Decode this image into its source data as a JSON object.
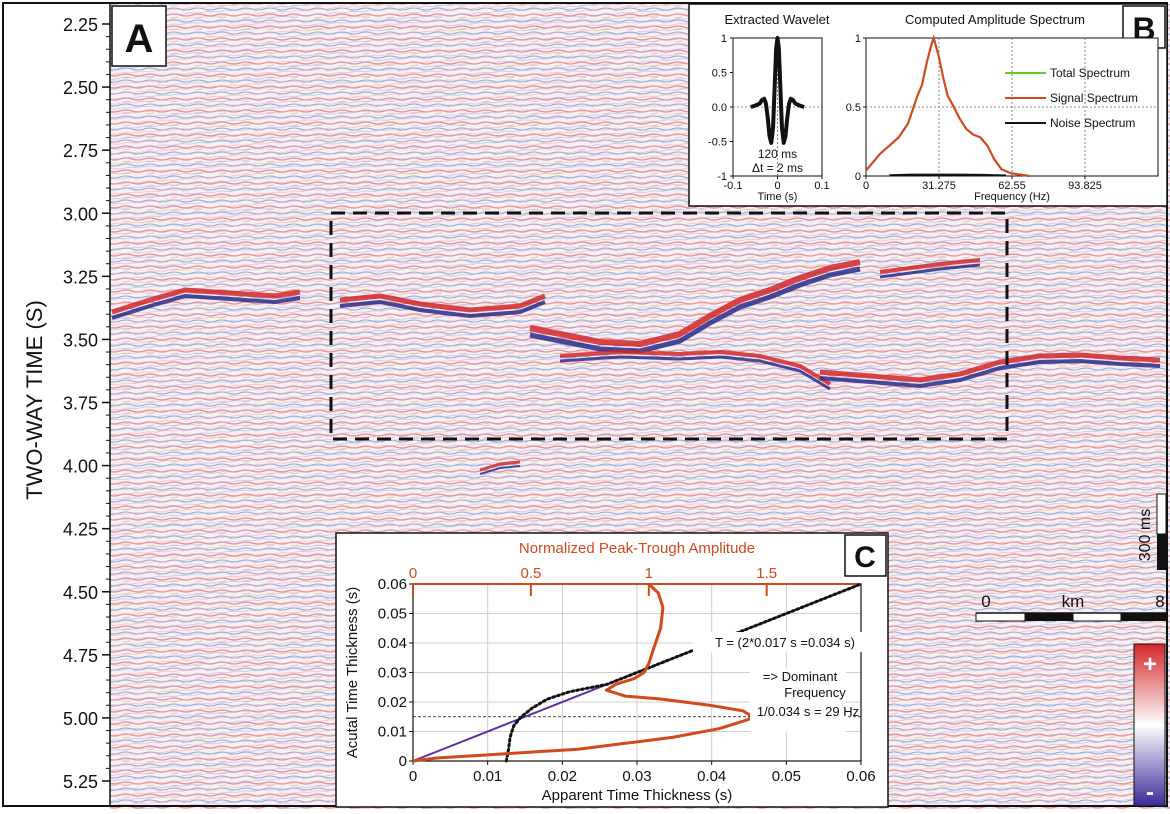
{
  "main_panel": {
    "label": "A",
    "y_axis_label": "TWO-WAY TIME (S)",
    "y_ticks": [
      "2.25",
      "2.50",
      "2.75",
      "3.00",
      "3.25",
      "3.50",
      "3.75",
      "4.00",
      "4.25",
      "4.50",
      "4.75",
      "5.00",
      "5.25"
    ],
    "y_range": [
      2.21,
      5.33
    ],
    "vertical_scale_label": "300 ms",
    "horizontal_scale": {
      "start": "0",
      "unit": "km",
      "end": "8"
    },
    "colorbar": {
      "plus": "+",
      "minus": "-",
      "pos_color": "#d2272a",
      "neg_color": "#3a2a9a"
    }
  },
  "chart_data": [
    {
      "type": "line",
      "title": "Extracted Wavelet",
      "xlabel": "Time (s)",
      "ylabel": "",
      "xlim": [
        -0.1,
        0.1
      ],
      "ylim": [
        -1,
        1
      ],
      "x_ticks": [
        "-0.1",
        "0",
        "0.1"
      ],
      "y_ticks": [
        "1",
        "0.5",
        "0.0",
        "-0.5",
        "-1"
      ],
      "annotations": [
        "120 ms",
        "Δt = 2 ms"
      ],
      "series": [
        {
          "x": [
            -0.06,
            -0.05,
            -0.04,
            -0.035,
            -0.03,
            -0.026,
            -0.022,
            -0.018,
            -0.014,
            -0.01,
            -0.006,
            -0.003,
            0,
            0.003,
            0.006,
            0.01,
            0.014,
            0.018,
            0.022,
            0.026,
            0.03,
            0.035,
            0.04,
            0.05,
            0.06
          ],
          "y": [
            0,
            0.02,
            0.05,
            0.1,
            0.12,
            0.05,
            -0.15,
            -0.42,
            -0.52,
            -0.3,
            0.35,
            0.85,
            1.0,
            0.85,
            0.35,
            -0.3,
            -0.52,
            -0.42,
            -0.15,
            0.05,
            0.12,
            0.1,
            0.05,
            0.02,
            0
          ]
        }
      ]
    },
    {
      "type": "line",
      "title": "Computed Amplitude Spectrum",
      "xlabel": "Frequency (Hz)",
      "ylabel": "",
      "xlim": [
        0,
        125.1
      ],
      "ylim": [
        0,
        1
      ],
      "x_ticks": [
        "0",
        "31.275",
        "62.55",
        "93.825"
      ],
      "y_ticks": [
        "1",
        "0.5",
        "0"
      ],
      "legend": [
        "Total Spectrum",
        "Signal Spectrum",
        "Noise Spectrum"
      ],
      "legend_colors": [
        "#66cc22",
        "#d2491c",
        "#111111"
      ],
      "series": [
        {
          "name": "Signal Spectrum",
          "x": [
            0,
            3,
            6,
            10,
            14,
            18,
            20,
            22,
            24,
            26,
            28,
            29,
            31,
            33,
            35,
            37,
            40,
            43,
            46,
            49,
            52,
            55,
            58,
            62,
            66,
            70
          ],
          "y": [
            0.04,
            0.1,
            0.16,
            0.22,
            0.28,
            0.38,
            0.48,
            0.58,
            0.66,
            0.82,
            0.95,
            1.0,
            0.88,
            0.72,
            0.58,
            0.52,
            0.42,
            0.34,
            0.3,
            0.28,
            0.22,
            0.12,
            0.05,
            0.02,
            0.01,
            0
          ]
        },
        {
          "name": "Noise Spectrum",
          "x": [
            10,
            20,
            30,
            40,
            50,
            60
          ],
          "y": [
            0.005,
            0.01,
            0.01,
            0.01,
            0.008,
            0.004
          ]
        }
      ]
    },
    {
      "type": "line",
      "label": "C",
      "title": "",
      "xlabel": "Apparent Time Thickness (s)",
      "ylabel": "Acutal Time Thickness (s)",
      "x2label": "Normalized Peak-Trough Amplitude",
      "xlim": [
        0,
        0.06
      ],
      "ylim": [
        0,
        0.06
      ],
      "x2lim": [
        0,
        1.9
      ],
      "x_ticks": [
        "0",
        "0.01",
        "0.02",
        "0.03",
        "0.04",
        "0.05",
        "0.06"
      ],
      "y_ticks": [
        "0",
        "0.01",
        "0.02",
        "0.03",
        "0.04",
        "0.05",
        "0.06"
      ],
      "x2_ticks": [
        "0",
        "0.5",
        "1",
        "1.5"
      ],
      "annotations": [
        "T = (2*0.017 s =0.034 s)",
        "=> Dominant",
        "Frequency",
        "1/0.034 s = 29 Hz"
      ],
      "dashed_line_y": 0.015,
      "series": [
        {
          "kind": "identity",
          "color": "#5b2fa8",
          "x": [
            0,
            0.06
          ],
          "y": [
            0,
            0.06
          ]
        },
        {
          "kind": "apparent-thickness",
          "color": "#111111",
          "x": [
            0.0125,
            0.0128,
            0.013,
            0.0135,
            0.0145,
            0.016,
            0.018,
            0.021,
            0.024,
            0.026,
            0.028,
            0.03,
            0.035,
            0.04,
            0.045,
            0.05,
            0.055,
            0.06
          ],
          "y": [
            0,
            0.004,
            0.008,
            0.012,
            0.015,
            0.018,
            0.021,
            0.0235,
            0.025,
            0.026,
            0.028,
            0.03,
            0.035,
            0.04,
            0.045,
            0.05,
            0.055,
            0.06
          ]
        },
        {
          "kind": "amplitude",
          "color": "#d2491c",
          "x": [
            0,
            0.1,
            0.3,
            0.5,
            0.7,
            0.9,
            1.1,
            1.3,
            1.42,
            1.44,
            1.4,
            1.25,
            1.05,
            0.9,
            0.82,
            0.86,
            0.94,
            0.98,
            1.0,
            1.02,
            1.05,
            1.06,
            1.04,
            1.0
          ],
          "y": [
            0,
            0.001,
            0.002,
            0.003,
            0.004,
            0.006,
            0.008,
            0.011,
            0.014,
            0.015,
            0.017,
            0.019,
            0.021,
            0.022,
            0.024,
            0.026,
            0.028,
            0.03,
            0.033,
            0.038,
            0.045,
            0.052,
            0.057,
            0.06
          ]
        }
      ]
    }
  ],
  "colors": {
    "seismic_pos": "#d2272a",
    "seismic_neg": "#3a2a9a",
    "amplitude_axis": "#d2491c"
  }
}
